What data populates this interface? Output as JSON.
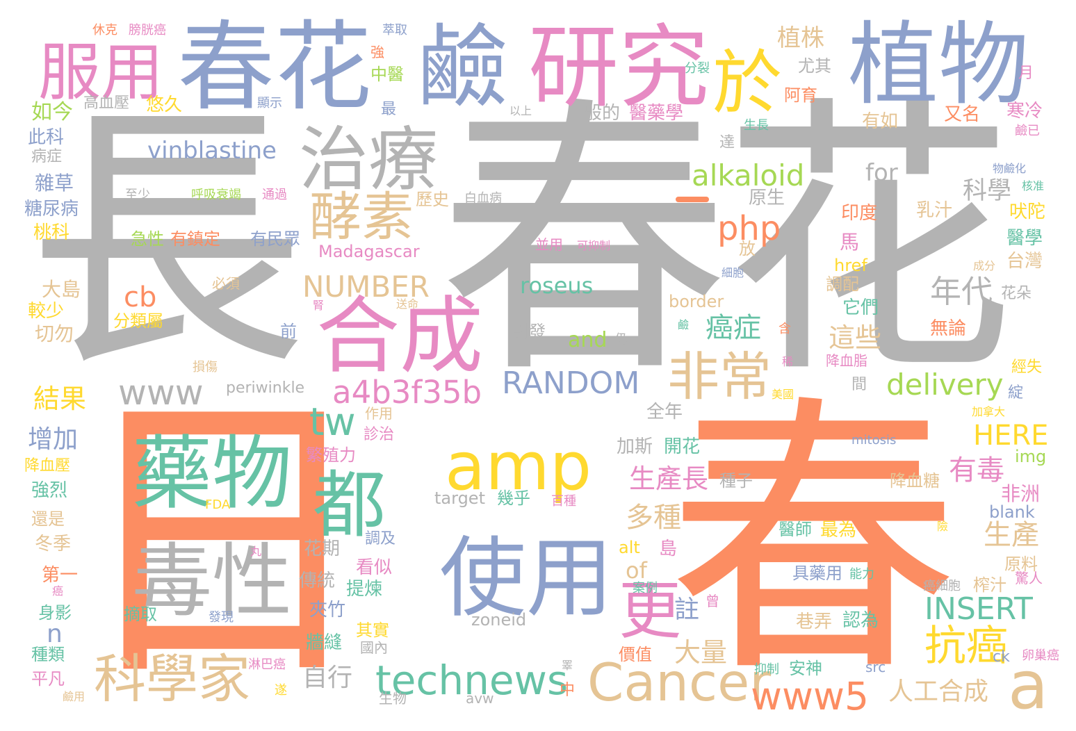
{
  "colors": {
    "gray": "#b3b3b3",
    "orange": "#fc8d62",
    "blue": "#8da0cb",
    "pink": "#e78ac3",
    "yellow": "#ffd92f",
    "teal": "#66c2a5",
    "tan": "#e5c494",
    "green": "#a6d854"
  },
  "words": {
    "w1": "長",
    "w2": "春",
    "w3": "花",
    "w4": "日",
    "w5": "春",
    "w6": "春花",
    "w7": "鹼",
    "w8": "研究",
    "w9": "植物",
    "w10": "服用",
    "w11": "於",
    "w12": "治療",
    "w13": "酵素",
    "w14": "合成",
    "w15": "都",
    "w16": "藥物",
    "w17": "毒性",
    "w18": "amp",
    "w19": "使用",
    "w20": "科學家",
    "w21": "Cancer",
    "w22": "technews",
    "w23": "更",
    "w24": "非常",
    "w25": "a",
    "w26": "抗癌",
    "w27": "www5",
    "w28": "a4b3f35b",
    "w29": "RANDOM",
    "w30": "www",
    "w31": "tw",
    "w32": "alkaloid",
    "w33": "php",
    "w34": "cb",
    "w35": "NUMBER",
    "w36": "delivery",
    "w37": "roseus",
    "w38": "vinblastine",
    "w39": "INSERT",
    "w40": "HERE",
    "w41": "年代",
    "w42": "科學",
    "w43": "植株",
    "w44": "癌症",
    "w45": "這些",
    "w46": "生產長",
    "w47": "多種",
    "w48": "生產",
    "w49": "有毒",
    "w50": "人工合成",
    "w51": "結果",
    "w52": "增加",
    "w53": "for",
    "w54": "and",
    "w55": "大量",
    "w56": "自行",
    "w57": "註",
    "w58": "of",
    "w59": "如今",
    "w60": "尤其",
    "w61": "中醫",
    "w62": "阿育",
    "w63": "般的",
    "w64": "醫藥學",
    "w65": "有如",
    "w66": "又名",
    "w67": "寒冷",
    "w68": "悠久",
    "w69": "高血壓",
    "w70": "最",
    "w71": "此科",
    "w72": "病症",
    "w73": "雜草",
    "w74": "糖尿病",
    "w75": "桃科",
    "w76": "急性",
    "w77": "有鎮定",
    "w78": "有民眾",
    "w79": "並用",
    "w80": "可抑制",
    "w81": "Madagascar",
    "w82": "歷史",
    "w83": "白血病",
    "w84": "原生",
    "w85": "乳汁",
    "w86": "印度",
    "w87": "吠陀",
    "w88": "醫學",
    "w89": "台灣",
    "w90": "馬",
    "w91": "href",
    "w92": "調配",
    "w93": "它們",
    "w94": "花朵",
    "w95": "無論",
    "w96": "border",
    "w97": "大島",
    "w98": "較少",
    "w99": "切勿",
    "w100": "分類屬",
    "w101": "必須",
    "w102": "前",
    "w103": "引發",
    "w104": "降血脂",
    "w105": "經失",
    "w106": "periwinkle",
    "w107": "全年",
    "w108": "加斯",
    "w109": "開花",
    "w110": "種子",
    "w111": "mitosis",
    "w112": "img",
    "w113": "繁殖力",
    "w114": "作用",
    "w115": "診治",
    "w116": "降血壓",
    "w117": "強烈",
    "w118": "還是",
    "w119": "冬季",
    "w120": "第一",
    "w121": "身影",
    "w122": "種類",
    "w123": "平凡",
    "w124": "FDA",
    "w125": "target",
    "w126": "幾乎",
    "w127": "百種",
    "w128": "降血糖",
    "w129": "非洲",
    "w130": "blank",
    "w131": "alt",
    "w132": "島",
    "w133": "醫師",
    "w134": "最為",
    "w135": "花期",
    "w136": "傳統",
    "w137": "提煉",
    "w138": "夾竹",
    "w139": "調及",
    "w140": "看似",
    "w141": "摘取",
    "w142": "發現",
    "w143": "zoneid",
    "w144": "其實",
    "w145": "牆縫",
    "w146": "國內",
    "w147": "n",
    "w148": "價值",
    "w149": "巷弄",
    "w150": "認為",
    "w151": "具藥用",
    "w152": "能力",
    "w153": "案例",
    "w154": "原料",
    "w155": "榨汁",
    "w156": "癌細胞",
    "w157": "驚人",
    "w158": "淋巴癌",
    "w159": "中",
    "w160": "生物",
    "w161": "avw",
    "w162": "抑制",
    "w163": "安神",
    "w164": "src",
    "w165": "ck",
    "w166": "卵巢癌",
    "w167": "鹼用",
    "w168": "休克",
    "w169": "膀胱癌",
    "w170": "萃取",
    "w171": "強",
    "w172": "分裂",
    "w173": "月",
    "w174": "顯示",
    "w175": "以上",
    "w176": "生長",
    "w177": "達",
    "w178": "至少",
    "w179": "呼吸衰竭",
    "w180": "通過",
    "w181": "放",
    "w182": "細胞",
    "w183": "成分",
    "w184": "損傷",
    "w185": "放射",
    "w186": "鹼已",
    "w187": "物鹼化",
    "w188": "核准",
    "w189": "加拿大",
    "w190": "綻",
    "w191": "美國",
    "w192": "間",
    "w193": "險",
    "w194": "仍",
    "w195": "含",
    "w196": "丸",
    "w197": "曾",
    "w198": "遂",
    "w199": "癌",
    "w200": "送命",
    "w201": "腎",
    "w202": "鹼",
    "w203": "稀",
    "w204": "睪"
  }
}
